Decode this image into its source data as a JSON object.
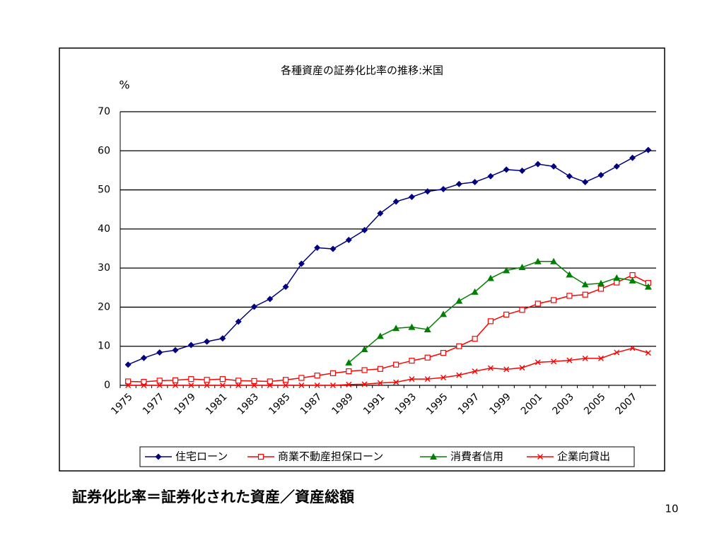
{
  "chart_data": {
    "type": "line",
    "title": "各種資産の証券化比率の推移:米国",
    "y_label": "%",
    "categories": [
      "1975",
      null,
      "1977",
      null,
      "1979",
      null,
      "1981",
      null,
      "1983",
      null,
      "1985",
      null,
      "1987",
      null,
      "1989",
      null,
      "1991",
      null,
      "1993",
      null,
      "1995",
      null,
      "1997",
      null,
      "1999",
      null,
      "2001",
      null,
      "2003",
      null,
      "2005",
      null,
      "2007",
      null
    ],
    "series": [
      {
        "name": "住宅ローン",
        "color": "#000080",
        "marker": "diamond",
        "values": [
          5.3,
          7,
          8.4,
          9,
          10.3,
          11.2,
          12,
          16.3,
          20.1,
          22.1,
          25.2,
          31.1,
          35.2,
          34.9,
          37.2,
          39.7,
          44,
          47,
          48.2,
          49.6,
          50.2,
          51.5,
          52,
          53.5,
          55.2,
          54.9,
          56.6,
          56,
          53.5,
          52,
          53.8,
          56,
          58.2,
          60.2
        ]
      },
      {
        "name": "商業不動産担保ローン",
        "color": "#ff0000",
        "marker": "square",
        "values": [
          1.0,
          0.9,
          1.2,
          1.3,
          1.6,
          1.4,
          1.6,
          1.2,
          1.1,
          1.0,
          1.4,
          1.9,
          2.5,
          3.1,
          3.6,
          3.9,
          4.2,
          5.3,
          6.3,
          7.1,
          8.3,
          10,
          11.9,
          16.4,
          18.1,
          19.3,
          20.9,
          21.8,
          22.9,
          23.2,
          24.7,
          26.3,
          28.2,
          26.2
        ]
      },
      {
        "name": "消費者信用",
        "color": "#008000",
        "marker": "triangle",
        "values": [
          null,
          null,
          null,
          null,
          null,
          null,
          null,
          null,
          null,
          null,
          null,
          null,
          null,
          null,
          5.8,
          9.2,
          12.6,
          14.6,
          14.9,
          14.3,
          18.2,
          21.6,
          23.9,
          27.4,
          29.4,
          30.2,
          31.7,
          31.7,
          28.3,
          25.8,
          26.1,
          27.5,
          26.8,
          25.2
        ]
      },
      {
        "name": "企業向貸出",
        "color": "#ff0000",
        "marker": "x",
        "values": [
          0,
          0,
          0,
          0,
          0,
          0,
          0,
          0,
          0,
          0,
          0,
          0,
          0,
          0,
          0.2,
          0.3,
          0.6,
          0.8,
          1.6,
          1.6,
          2,
          2.6,
          3.6,
          4.4,
          4.1,
          4.5,
          5.9,
          6.1,
          6.4,
          6.9,
          6.9,
          8.4,
          9.5,
          8.3
        ]
      }
    ],
    "ylim": [
      0,
      70
    ],
    "yticks": [
      0,
      10,
      20,
      30,
      40,
      50,
      60,
      70
    ],
    "grid": true,
    "legend": "bottom"
  },
  "footer": {
    "formula": "証券化比率＝証券化された資産／資産総額",
    "page_number": "10"
  }
}
